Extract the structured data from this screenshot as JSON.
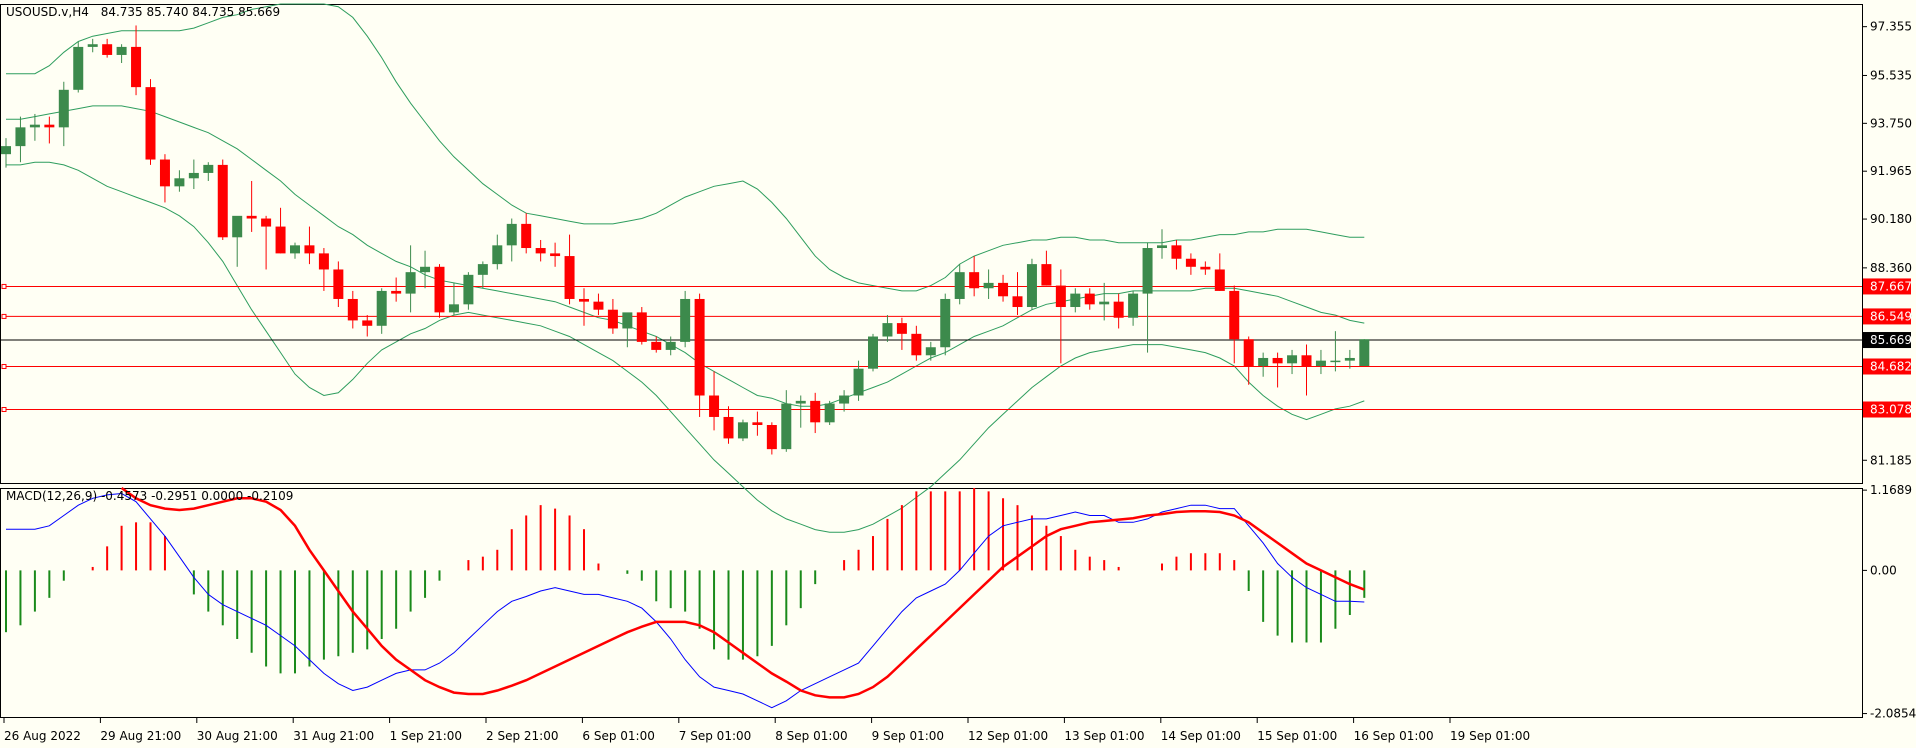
{
  "colors": {
    "background": "#fffff4",
    "bull": "#3c8a4c",
    "bear": "#ff0000",
    "band": "#2e9d5e",
    "level": "#ff0000",
    "macd_line": "#0000ff",
    "signal_line": "#ff0000",
    "hist_pos": "#ff0000",
    "hist_neg": "#1a8a1a",
    "price_tag_bg": "#000000"
  },
  "header": {
    "symbol": "USOUSD.v,H4",
    "ohlc": "84.735 85.740 84.735 85.669"
  },
  "chart_data": [
    {
      "type": "candlestick",
      "title": "USOUSD.v,H4",
      "ylim": [
        80.3,
        98.2
      ],
      "price_ticks": [
        "97.355",
        "95.535",
        "93.750",
        "91.965",
        "90.180",
        "88.360",
        "86.549",
        "81.185"
      ],
      "time_labels": [
        "26 Aug 2022",
        "29 Aug 21:00",
        "30 Aug 21:00",
        "31 Aug 21:00",
        "1 Sep 21:00",
        "2 Sep 21:00",
        "6 Sep 01:00",
        "7 Sep 01:00",
        "8 Sep 01:00",
        "9 Sep 01:00",
        "12 Sep 01:00",
        "13 Sep 01:00",
        "14 Sep 01:00",
        "15 Sep 01:00",
        "16 Sep 01:00",
        "19 Sep 01:00"
      ],
      "horizontal_levels": [
        {
          "label": "87.667",
          "value": 87.667
        },
        {
          "label": "86.549",
          "value": 86.549
        },
        {
          "label": "84.682",
          "value": 84.682
        },
        {
          "label": "83.078",
          "value": 83.078
        }
      ],
      "current_price": {
        "label": "85.669",
        "value": 85.669
      },
      "candles": [
        [
          92.6,
          93.2,
          92.1,
          92.9
        ],
        [
          92.9,
          94.0,
          92.3,
          93.6
        ],
        [
          93.6,
          94.1,
          93.1,
          93.7
        ],
        [
          93.7,
          94.0,
          93.0,
          93.6
        ],
        [
          93.6,
          95.3,
          92.9,
          95.0
        ],
        [
          95.0,
          96.8,
          94.9,
          96.6
        ],
        [
          96.6,
          96.9,
          96.4,
          96.7
        ],
        [
          96.7,
          96.9,
          96.2,
          96.3
        ],
        [
          96.3,
          96.7,
          96.0,
          96.6
        ],
        [
          96.6,
          97.4,
          94.8,
          95.1
        ],
        [
          95.1,
          95.4,
          92.2,
          92.4
        ],
        [
          92.4,
          92.6,
          90.8,
          91.4
        ],
        [
          91.4,
          92.0,
          91.2,
          91.7
        ],
        [
          91.7,
          92.4,
          91.3,
          91.9
        ],
        [
          91.9,
          92.3,
          91.6,
          92.2
        ],
        [
          92.2,
          92.4,
          89.4,
          89.5
        ],
        [
          89.5,
          90.2,
          88.4,
          90.3
        ],
        [
          90.3,
          91.6,
          89.7,
          90.2
        ],
        [
          90.2,
          90.3,
          88.3,
          89.9
        ],
        [
          89.9,
          90.6,
          88.9,
          88.9
        ],
        [
          88.9,
          89.3,
          88.7,
          89.2
        ],
        [
          89.2,
          89.9,
          88.5,
          88.9
        ],
        [
          88.9,
          89.1,
          87.5,
          88.3
        ],
        [
          88.3,
          88.6,
          86.9,
          87.2
        ],
        [
          87.2,
          87.5,
          86.1,
          86.4
        ],
        [
          86.4,
          86.6,
          85.8,
          86.2
        ],
        [
          86.2,
          87.6,
          85.9,
          87.5
        ],
        [
          87.5,
          88.0,
          87.1,
          87.4
        ],
        [
          87.4,
          89.2,
          86.7,
          88.2
        ],
        [
          88.2,
          89.0,
          87.6,
          88.4
        ],
        [
          88.4,
          88.5,
          86.5,
          86.7
        ],
        [
          86.7,
          87.8,
          86.6,
          87.0
        ],
        [
          87.0,
          88.2,
          86.8,
          88.1
        ],
        [
          88.1,
          88.6,
          87.6,
          88.5
        ],
        [
          88.5,
          89.6,
          88.3,
          89.2
        ],
        [
          89.2,
          90.2,
          88.6,
          90.0
        ],
        [
          90.0,
          90.4,
          88.9,
          89.1
        ],
        [
          89.1,
          89.4,
          88.6,
          88.9
        ],
        [
          88.9,
          89.3,
          88.4,
          88.8
        ],
        [
          88.8,
          89.6,
          87.0,
          87.2
        ],
        [
          87.2,
          87.6,
          86.2,
          87.1
        ],
        [
          87.1,
          87.4,
          86.6,
          86.8
        ],
        [
          86.8,
          87.2,
          85.9,
          86.1
        ],
        [
          86.1,
          86.6,
          85.4,
          86.7
        ],
        [
          86.7,
          86.9,
          85.5,
          85.6
        ],
        [
          85.6,
          85.8,
          85.2,
          85.3
        ],
        [
          85.3,
          85.8,
          85.1,
          85.6
        ],
        [
          85.6,
          87.5,
          85.4,
          87.2
        ],
        [
          87.2,
          87.4,
          82.8,
          83.6
        ],
        [
          83.6,
          84.5,
          82.3,
          82.8
        ],
        [
          82.8,
          83.2,
          81.8,
          82.0
        ],
        [
          82.0,
          82.7,
          81.9,
          82.6
        ],
        [
          82.6,
          83.0,
          82.1,
          82.5
        ],
        [
          82.5,
          82.6,
          81.4,
          81.6
        ],
        [
          81.6,
          83.8,
          81.5,
          83.3
        ],
        [
          83.3,
          83.6,
          82.4,
          83.4
        ],
        [
          83.4,
          83.7,
          82.2,
          82.6
        ],
        [
          82.6,
          83.4,
          82.5,
          83.3
        ],
        [
          83.3,
          83.8,
          83.0,
          83.6
        ],
        [
          83.6,
          84.9,
          83.4,
          84.6
        ],
        [
          84.6,
          85.9,
          84.5,
          85.8
        ],
        [
          85.8,
          86.6,
          85.6,
          86.3
        ],
        [
          86.3,
          86.5,
          85.3,
          85.9
        ],
        [
          85.9,
          86.2,
          84.9,
          85.1
        ],
        [
          85.1,
          85.6,
          84.9,
          85.4
        ],
        [
          85.4,
          87.4,
          85.1,
          87.2
        ],
        [
          87.2,
          88.5,
          87.0,
          88.2
        ],
        [
          88.2,
          88.8,
          87.3,
          87.6
        ],
        [
          87.6,
          88.3,
          87.2,
          87.8
        ],
        [
          87.8,
          88.1,
          87.1,
          87.3
        ],
        [
          87.3,
          88.2,
          86.6,
          86.9
        ],
        [
          86.9,
          88.7,
          86.8,
          88.5
        ],
        [
          88.5,
          89.0,
          87.7,
          87.7
        ],
        [
          87.7,
          88.3,
          84.8,
          86.9
        ],
        [
          86.9,
          87.6,
          86.7,
          87.4
        ],
        [
          87.4,
          87.6,
          86.8,
          87.0
        ],
        [
          87.0,
          87.8,
          86.4,
          87.1
        ],
        [
          87.1,
          87.4,
          86.1,
          86.5
        ],
        [
          86.5,
          87.5,
          86.2,
          87.4
        ],
        [
          87.4,
          89.3,
          85.2,
          89.1
        ],
        [
          89.1,
          89.8,
          88.7,
          89.2
        ],
        [
          89.2,
          89.4,
          88.3,
          88.7
        ],
        [
          88.7,
          88.9,
          88.1,
          88.4
        ],
        [
          88.4,
          88.6,
          88.1,
          88.3
        ],
        [
          88.3,
          88.9,
          87.5,
          87.5
        ],
        [
          87.5,
          87.7,
          84.8,
          85.7
        ],
        [
          85.7,
          85.8,
          84.0,
          84.7
        ],
        [
          84.7,
          85.2,
          84.3,
          85.0
        ],
        [
          85.0,
          85.2,
          83.9,
          84.8
        ],
        [
          84.8,
          85.3,
          84.4,
          85.1
        ],
        [
          85.1,
          85.5,
          83.6,
          84.7
        ],
        [
          84.7,
          85.3,
          84.4,
          84.9
        ],
        [
          84.9,
          86.0,
          84.5,
          84.9
        ],
        [
          84.9,
          85.3,
          84.6,
          85.0
        ],
        [
          84.7,
          85.7,
          84.7,
          85.7
        ]
      ],
      "bollinger": {
        "upper": [
          95.6,
          95.6,
          95.6,
          95.9,
          96.4,
          96.8,
          97.0,
          97.1,
          97.2,
          97.2,
          97.2,
          97.2,
          97.2,
          97.3,
          97.5,
          97.7,
          97.8,
          98.0,
          98.1,
          98.2,
          98.2,
          98.2,
          98.2,
          98.1,
          97.7,
          97.0,
          96.2,
          95.3,
          94.5,
          93.8,
          93.1,
          92.5,
          92.0,
          91.5,
          91.1,
          90.7,
          90.4,
          90.3,
          90.2,
          90.1,
          90.0,
          90.0,
          90.0,
          90.1,
          90.2,
          90.4,
          90.7,
          91.0,
          91.2,
          91.4,
          91.5,
          91.6,
          91.3,
          90.8,
          90.2,
          89.5,
          88.8,
          88.3,
          88.0,
          87.8,
          87.7,
          87.6,
          87.5,
          87.5,
          87.7,
          88.0,
          88.5,
          88.8,
          89.0,
          89.2,
          89.3,
          89.4,
          89.4,
          89.5,
          89.5,
          89.4,
          89.4,
          89.3,
          89.3,
          89.3,
          89.3,
          89.4,
          89.4,
          89.5,
          89.6,
          89.6,
          89.7,
          89.7,
          89.8,
          89.8,
          89.8,
          89.7,
          89.6,
          89.5,
          89.5
        ],
        "middle": [
          93.9,
          93.9,
          94.0,
          94.1,
          94.2,
          94.3,
          94.4,
          94.4,
          94.4,
          94.3,
          94.2,
          94.0,
          93.8,
          93.6,
          93.4,
          93.1,
          92.8,
          92.4,
          92.0,
          91.6,
          91.1,
          90.7,
          90.3,
          89.9,
          89.6,
          89.2,
          88.9,
          88.6,
          88.4,
          88.1,
          87.9,
          87.8,
          87.7,
          87.6,
          87.5,
          87.4,
          87.3,
          87.2,
          87.1,
          86.9,
          86.7,
          86.5,
          86.4,
          86.2,
          86.0,
          85.8,
          85.5,
          85.2,
          84.8,
          84.5,
          84.2,
          83.9,
          83.6,
          83.5,
          83.3,
          83.2,
          83.2,
          83.3,
          83.5,
          83.7,
          83.9,
          84.1,
          84.4,
          84.7,
          85.0,
          85.2,
          85.5,
          85.8,
          86.0,
          86.2,
          86.5,
          86.8,
          87.0,
          87.1,
          87.2,
          87.3,
          87.4,
          87.4,
          87.5,
          87.5,
          87.5,
          87.5,
          87.5,
          87.6,
          87.6,
          87.6,
          87.5,
          87.4,
          87.3,
          87.1,
          86.9,
          86.7,
          86.6,
          86.4,
          86.3
        ],
        "lower": [
          92.2,
          92.2,
          92.3,
          92.3,
          92.2,
          92.0,
          91.7,
          91.4,
          91.2,
          91.0,
          90.8,
          90.6,
          90.3,
          89.9,
          89.3,
          88.6,
          87.7,
          86.8,
          86.0,
          85.2,
          84.4,
          83.9,
          83.6,
          83.7,
          84.2,
          84.8,
          85.3,
          85.6,
          85.9,
          86.1,
          86.4,
          86.6,
          86.7,
          86.6,
          86.5,
          86.4,
          86.3,
          86.2,
          86.0,
          85.8,
          85.5,
          85.2,
          84.9,
          84.5,
          84.1,
          83.6,
          83.0,
          82.4,
          81.8,
          81.2,
          80.7,
          80.2,
          79.7,
          79.3,
          79.0,
          78.8,
          78.6,
          78.5,
          78.5,
          78.6,
          78.8,
          79.1,
          79.4,
          79.8,
          80.2,
          80.7,
          81.2,
          81.8,
          82.4,
          82.9,
          83.4,
          83.9,
          84.3,
          84.7,
          85.0,
          85.2,
          85.3,
          85.4,
          85.5,
          85.5,
          85.5,
          85.4,
          85.3,
          85.2,
          85.0,
          84.7,
          84.1,
          83.6,
          83.2,
          82.9,
          82.7,
          82.9,
          83.1,
          83.2,
          83.4
        ]
      }
    },
    {
      "type": "macd",
      "label": "MACD(12,26,9) -0.4573 -0.2951 0.0000 -0.2109",
      "ylim": [
        -2.15,
        1.2
      ],
      "ticks": [
        "1.1689",
        "0.00",
        "-2.0854"
      ],
      "histogram": [
        -0.9,
        -0.8,
        -0.6,
        -0.4,
        -0.15,
        0.0,
        0.05,
        0.35,
        0.65,
        0.7,
        0.7,
        0.5,
        0.0,
        -0.35,
        -0.6,
        -0.8,
        -1.0,
        -1.2,
        -1.4,
        -1.5,
        -1.5,
        -1.4,
        -1.3,
        -1.25,
        -1.2,
        -1.15,
        -1.0,
        -0.85,
        -0.6,
        -0.4,
        -0.15,
        0.0,
        0.15,
        0.2,
        0.3,
        0.6,
        0.8,
        0.95,
        0.9,
        0.8,
        0.6,
        0.1,
        0.0,
        -0.05,
        -0.15,
        -0.45,
        -0.55,
        -0.6,
        -0.85,
        -1.15,
        -1.3,
        -1.3,
        -1.25,
        -1.1,
        -0.8,
        -0.55,
        -0.2,
        0.0,
        0.15,
        0.3,
        0.5,
        0.75,
        0.95,
        1.15,
        1.15,
        1.15,
        1.15,
        1.2,
        1.15,
        1.05,
        0.95,
        0.8,
        0.65,
        0.5,
        0.3,
        0.2,
        0.15,
        0.05,
        0.0,
        0.0,
        0.1,
        0.2,
        0.25,
        0.25,
        0.25,
        0.15,
        -0.3,
        -0.75,
        -0.95,
        -1.05,
        -1.05,
        -1.05,
        -0.85,
        -0.65,
        -0.4
      ],
      "macd": [
        0.6,
        0.6,
        0.6,
        0.65,
        0.8,
        0.95,
        1.05,
        1.1,
        1.12,
        1.0,
        0.75,
        0.5,
        0.2,
        -0.1,
        -0.35,
        -0.5,
        -0.6,
        -0.7,
        -0.8,
        -0.95,
        -1.1,
        -1.3,
        -1.5,
        -1.65,
        -1.75,
        -1.7,
        -1.6,
        -1.5,
        -1.45,
        -1.45,
        -1.35,
        -1.2,
        -1.0,
        -0.8,
        -0.6,
        -0.45,
        -0.38,
        -0.3,
        -0.25,
        -0.3,
        -0.35,
        -0.35,
        -0.4,
        -0.45,
        -0.55,
        -0.75,
        -1.0,
        -1.3,
        -1.55,
        -1.7,
        -1.75,
        -1.8,
        -1.9,
        -2.0,
        -1.9,
        -1.75,
        -1.65,
        -1.55,
        -1.45,
        -1.35,
        -1.1,
        -0.85,
        -0.6,
        -0.4,
        -0.3,
        -0.2,
        0.0,
        0.25,
        0.5,
        0.65,
        0.7,
        0.75,
        0.75,
        0.8,
        0.85,
        0.8,
        0.8,
        0.7,
        0.7,
        0.75,
        0.85,
        0.9,
        0.95,
        0.95,
        0.9,
        0.9,
        0.65,
        0.4,
        0.1,
        -0.1,
        -0.25,
        -0.35,
        -0.45,
        -0.45,
        -0.46
      ],
      "signal": [
        1.2,
        1.05,
        0.95,
        0.9,
        0.88,
        0.9,
        0.95,
        1.0,
        1.05,
        1.05,
        1.0,
        0.88,
        0.65,
        0.3,
        0.0,
        -0.3,
        -0.6,
        -0.85,
        -1.1,
        -1.3,
        -1.45,
        -1.6,
        -1.7,
        -1.78,
        -1.8,
        -1.8,
        -1.75,
        -1.68,
        -1.6,
        -1.5,
        -1.4,
        -1.3,
        -1.2,
        -1.1,
        -1.0,
        -0.9,
        -0.82,
        -0.75,
        -0.75,
        -0.75,
        -0.8,
        -0.9,
        -1.05,
        -1.2,
        -1.35,
        -1.5,
        -1.62,
        -1.75,
        -1.82,
        -1.85,
        -1.85,
        -1.8,
        -1.7,
        -1.55,
        -1.35,
        -1.15,
        -0.95,
        -0.75,
        -0.55,
        -0.35,
        -0.15,
        0.05,
        0.2,
        0.35,
        0.5,
        0.6,
        0.65,
        0.7,
        0.72,
        0.74,
        0.76,
        0.8,
        0.82,
        0.85,
        0.86,
        0.86,
        0.85,
        0.8,
        0.7,
        0.55,
        0.4,
        0.25,
        0.1,
        0.0,
        -0.1,
        -0.2,
        -0.28
      ],
      "signal_offset": 8
    }
  ]
}
